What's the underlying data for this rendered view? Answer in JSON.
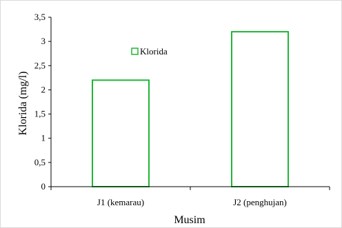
{
  "chart_data": {
    "type": "bar",
    "title": "",
    "categories": [
      "J1 (kemarau)",
      "J2 (penghujan)"
    ],
    "series": [
      {
        "name": "Klorida",
        "values": [
          2.2,
          3.2
        ]
      }
    ],
    "xlabel": "Musim",
    "ylabel": "Klorida (mg/l)",
    "ylim": [
      0,
      3.5
    ],
    "yticks": [
      0,
      0.5,
      1,
      1.5,
      2,
      2.5,
      3,
      3.5
    ],
    "ytick_labels": [
      "0",
      "0,5",
      "1",
      "1,5",
      "2",
      "2,5",
      "3",
      "3,5"
    ],
    "grid": false,
    "legend_position": "top-center",
    "bar_fill": "#ffffff",
    "bar_stroke": "#1fb535"
  }
}
